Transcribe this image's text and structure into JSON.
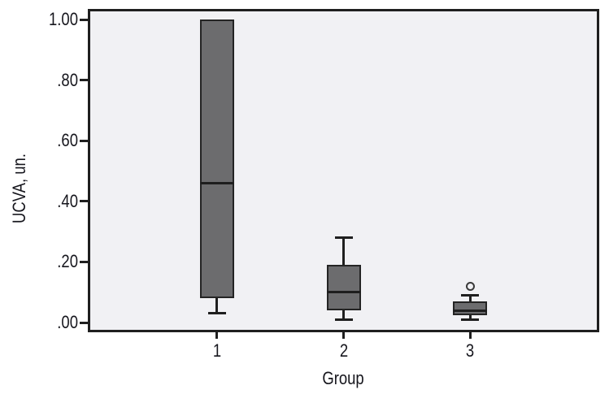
{
  "chart_data": {
    "type": "boxplot",
    "title": "",
    "xlabel": "Group",
    "ylabel": "UCVA, un.",
    "ylim": [
      0.0,
      1.0
    ],
    "grid": false,
    "legend": false,
    "yticks": [
      {
        "value": 1.0,
        "label": "1.00"
      },
      {
        "value": 0.8,
        "label": ".80"
      },
      {
        "value": 0.6,
        "label": ".60"
      },
      {
        "value": 0.4,
        "label": ".40"
      },
      {
        "value": 0.2,
        "label": ".20"
      },
      {
        "value": 0.0,
        "label": ".00"
      }
    ],
    "categories": [
      "1",
      "2",
      "3"
    ],
    "series": [
      {
        "category": "1",
        "whisker_low": 0.03,
        "q1": 0.08,
        "median": 0.46,
        "q3": 1.0,
        "whisker_high": 1.0,
        "outliers": []
      },
      {
        "category": "2",
        "whisker_low": 0.01,
        "q1": 0.04,
        "median": 0.1,
        "q3": 0.19,
        "whisker_high": 0.28,
        "outliers": []
      },
      {
        "category": "3",
        "whisker_low": 0.01,
        "q1": 0.025,
        "median": 0.04,
        "q3": 0.07,
        "whisker_high": 0.09,
        "outliers": [
          0.12
        ]
      }
    ],
    "colors": {
      "plot_bg": "#f1f1f4",
      "axis": "#1f1f1f",
      "text": "#16161d",
      "box_fill": "#6c6c6e",
      "box_border": "#242424",
      "median": "#1e1e1e",
      "whisker": "#1f1f1f",
      "outlier_border": "#3a3a3a"
    }
  }
}
